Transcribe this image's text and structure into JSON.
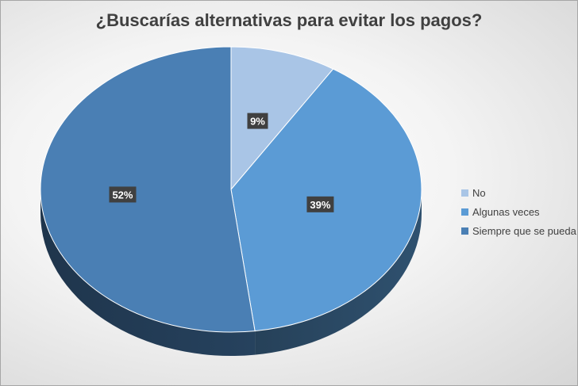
{
  "chart_data": {
    "type": "pie",
    "title": "¿Buscarías alternativas para evitar los pagos?",
    "categories": [
      "No",
      "Algunas veces",
      "Siempre que se pueda"
    ],
    "values": [
      9,
      39,
      52
    ],
    "data_labels": [
      "9%",
      "39%",
      "52%"
    ],
    "colors": [
      "#a9c5e6",
      "#5b9bd5",
      "#4a7fb4"
    ],
    "style": "3d",
    "legend_position": "right",
    "legend": [
      "No",
      "Algunas veces",
      "Siempre que se pueda"
    ]
  }
}
